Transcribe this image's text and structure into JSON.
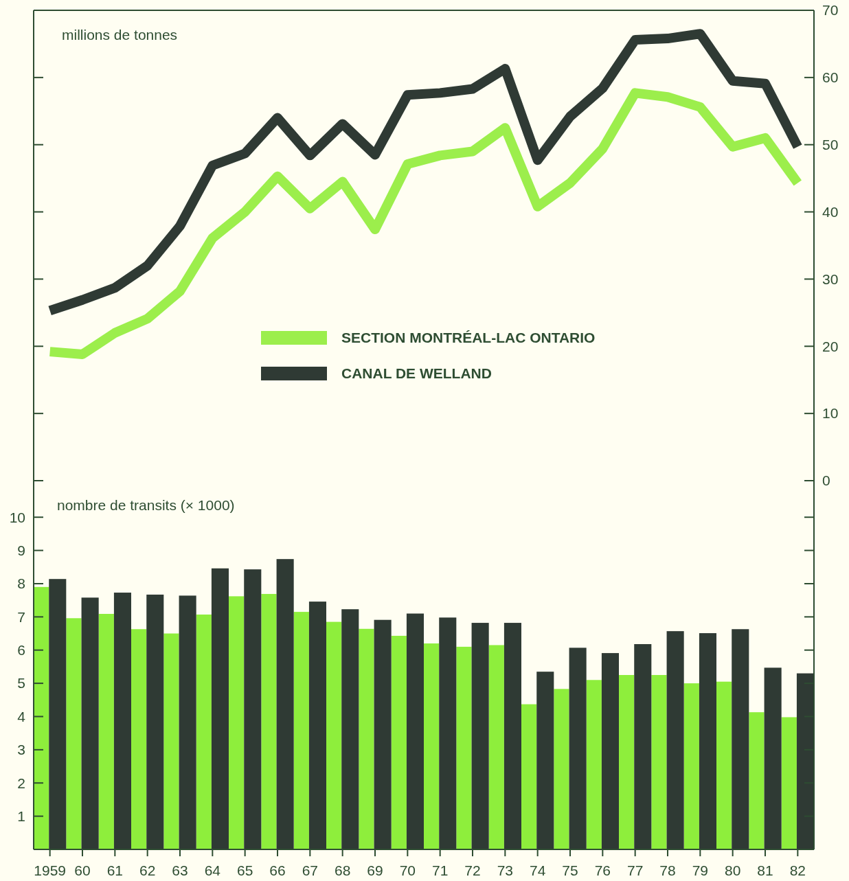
{
  "chart_data": [
    {
      "type": "line",
      "ylabel": "millions de tonnes",
      "categories": [
        "1959",
        "60",
        "61",
        "62",
        "63",
        "64",
        "65",
        "66",
        "67",
        "68",
        "69",
        "70",
        "71",
        "72",
        "73",
        "74",
        "75",
        "76",
        "77",
        "78",
        "79",
        "80",
        "81",
        "82"
      ],
      "series": [
        {
          "name": "SECTION MONTRÉAL-LAC ONTARIO",
          "color": "#9cee4c",
          "values": [
            19.2,
            18.8,
            22,
            24.1,
            28.2,
            36.1,
            40,
            45.3,
            40.5,
            44.5,
            37.4,
            47.1,
            48.4,
            49,
            52.5,
            40.8,
            44.3,
            49.4,
            57.7,
            57.1,
            55.6,
            49.7,
            51,
            44.3
          ]
        },
        {
          "name": "CANAL DE WELLAND",
          "color": "#2f3a34",
          "values": [
            25.3,
            26.9,
            28.7,
            32,
            37.9,
            46.9,
            48.7,
            54,
            48.4,
            53.1,
            48.5,
            57.4,
            57.7,
            58.3,
            61.3,
            47.7,
            54.2,
            58.4,
            65.6,
            65.8,
            66.5,
            59.5,
            59.1,
            49.7
          ]
        }
      ],
      "ylim": [
        0,
        70
      ],
      "yticks": [
        0,
        10,
        20,
        30,
        40,
        50,
        60,
        70
      ],
      "tick_labels": "y",
      "legend": "center",
      "line_style": "solid"
    },
    {
      "type": "bar",
      "ylabel": "nombre de transits (× 1000)",
      "categories": [
        "1959",
        "60",
        "61",
        "62",
        "63",
        "64",
        "65",
        "66",
        "67",
        "68",
        "69",
        "70",
        "71",
        "72",
        "73",
        "74",
        "75",
        "76",
        "77",
        "78",
        "79",
        "80",
        "81",
        "82"
      ],
      "series": [
        {
          "color": "#8eee3c",
          "values": [
            7.9,
            6.96,
            7.09,
            6.63,
            6.5,
            7.07,
            7.62,
            7.69,
            7.15,
            6.85,
            6.64,
            6.43,
            6.2,
            6.1,
            6.15,
            4.37,
            4.83,
            5.1,
            5.25,
            5.25,
            5.0,
            5.05,
            4.13,
            3.98
          ]
        },
        {
          "color": "#2f3a34",
          "values": [
            8.14,
            7.58,
            7.73,
            7.67,
            7.64,
            8.46,
            8.43,
            8.74,
            7.46,
            7.23,
            6.91,
            7.1,
            6.98,
            6.82,
            6.82,
            5.35,
            6.07,
            5.91,
            6.18,
            6.57,
            6.51,
            6.63,
            5.47,
            5.3
          ]
        }
      ],
      "ylim": [
        0,
        11.1
      ],
      "yticks": [
        1,
        2,
        3,
        4,
        5,
        6,
        7,
        8,
        9,
        10
      ]
    }
  ]
}
